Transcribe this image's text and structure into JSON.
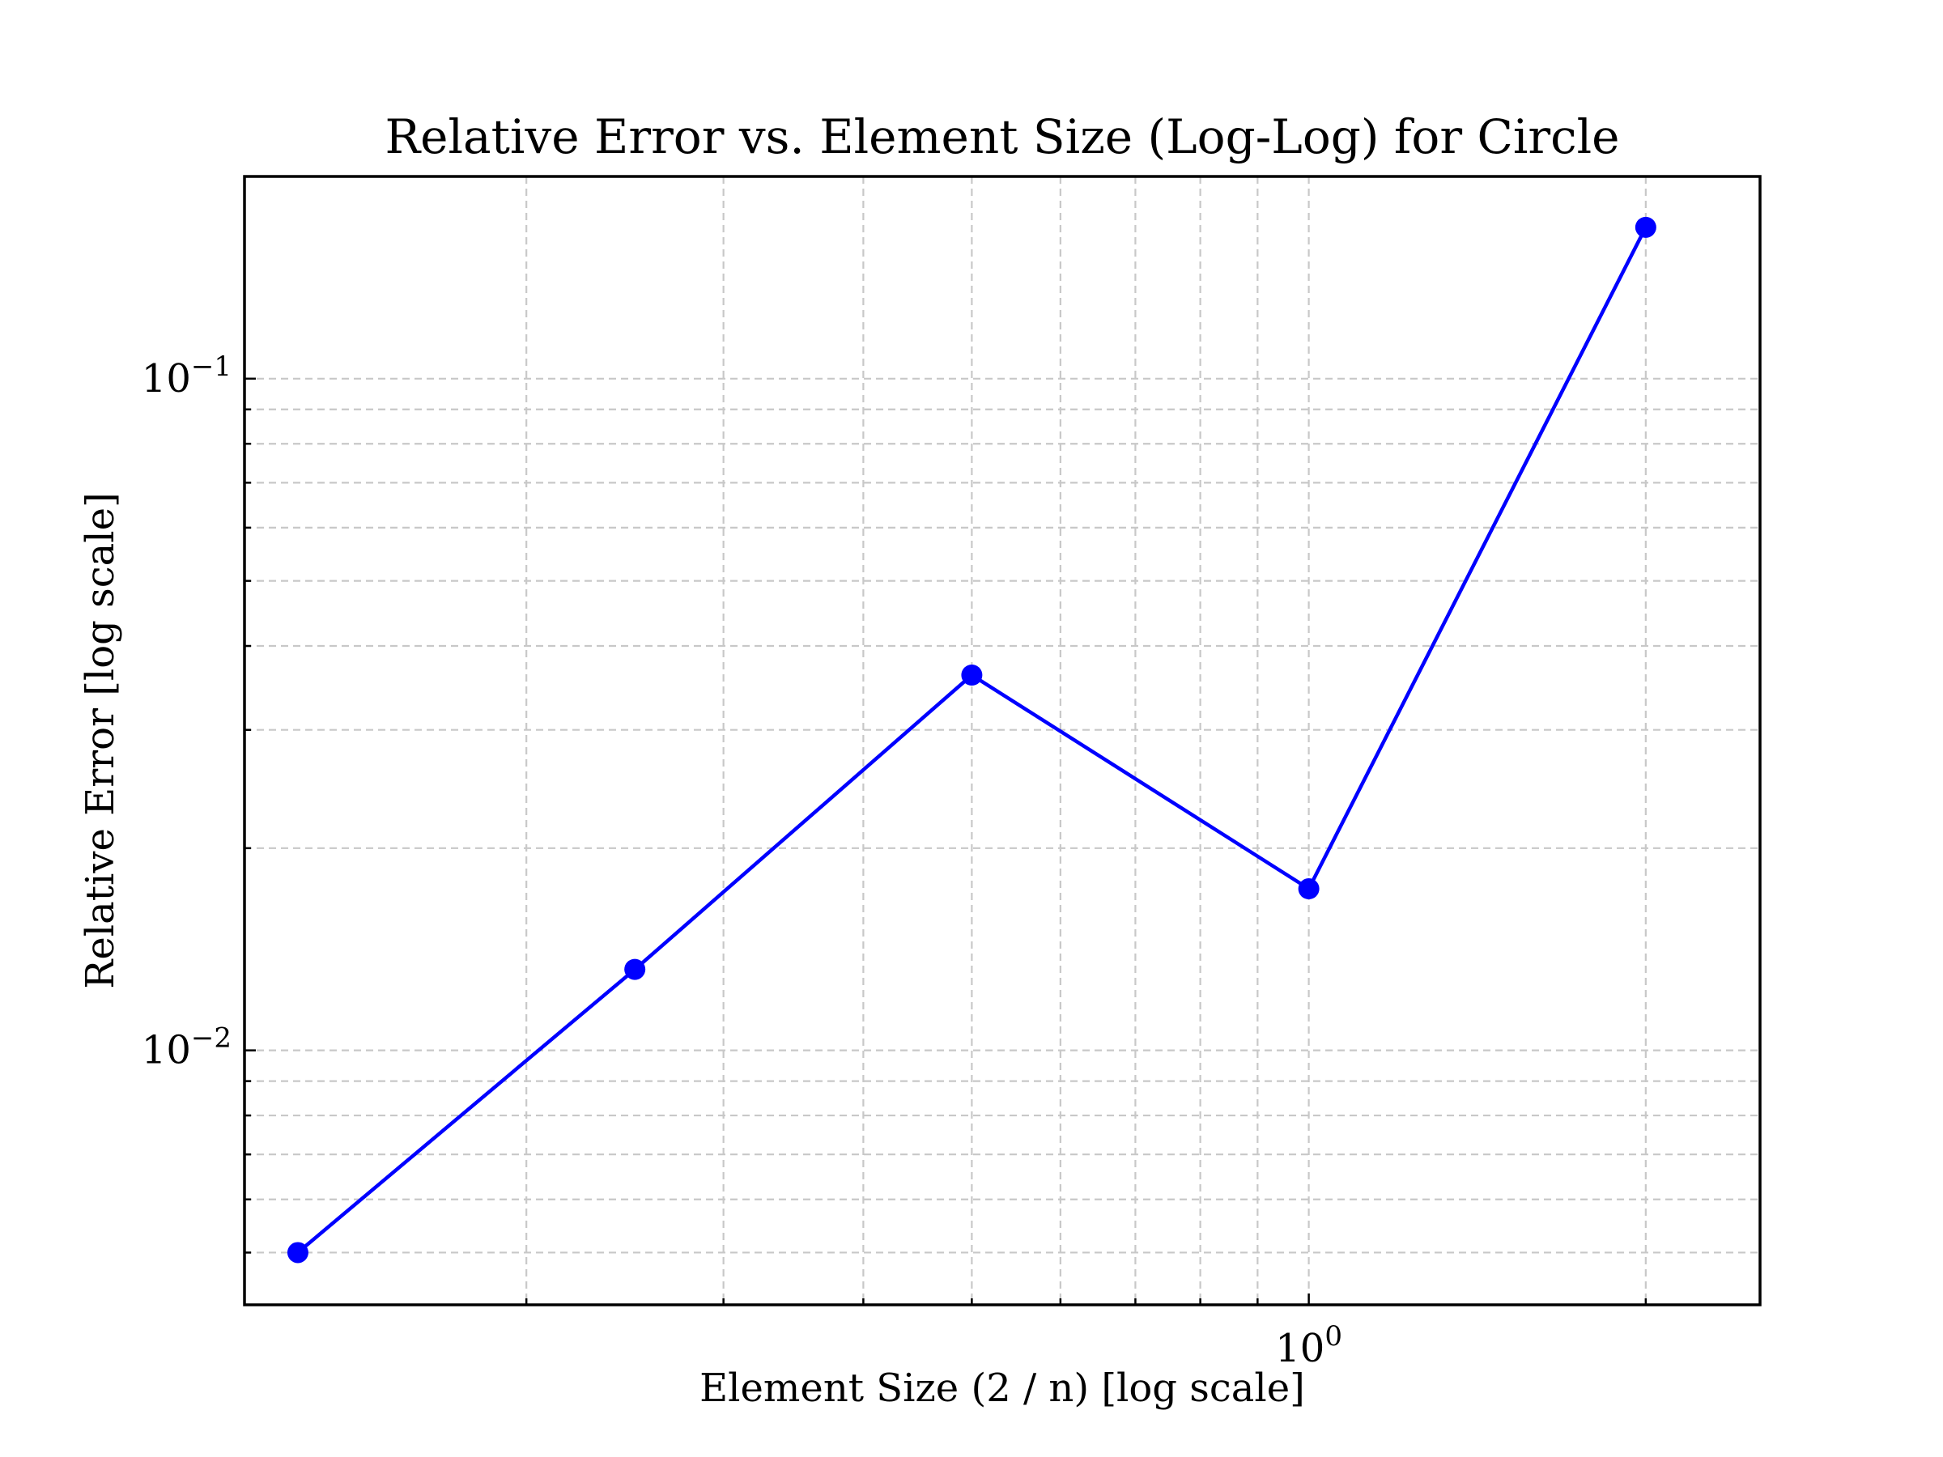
{
  "chart_data": {
    "type": "line",
    "title": "Relative Error vs. Element Size (Log-Log) for Circle",
    "xlabel": "Element Size (2 / n) [log scale]",
    "ylabel": "Relative Error [log scale]",
    "xscale": "log",
    "yscale": "log",
    "xlim": [
      0.112,
      2.53
    ],
    "ylim": [
      0.00418,
      0.2
    ],
    "grid": true,
    "grid_style": "dashed",
    "x_ticks": [
      {
        "value": 1,
        "base": "10",
        "exponent": "0"
      }
    ],
    "y_ticks": [
      {
        "value": 0.01,
        "base": "10",
        "exponent": "−2"
      },
      {
        "value": 0.1,
        "base": "10",
        "exponent": "−1"
      }
    ],
    "x_minor_ticks": [
      0.2,
      0.3,
      0.4,
      0.5,
      0.6,
      0.7,
      0.8,
      0.9,
      2
    ],
    "y_minor_ticks": [
      0.005,
      0.006,
      0.007,
      0.008,
      0.009,
      0.02,
      0.03,
      0.04,
      0.05,
      0.06,
      0.07,
      0.08,
      0.09
    ],
    "series": [
      {
        "x": [
          0.125,
          0.25,
          0.5,
          1.0,
          2.0
        ],
        "y": [
          0.005,
          0.0132,
          0.0362,
          0.0174,
          0.168
        ],
        "color": "#0000ff",
        "marker": "circle",
        "linestyle": "solid"
      }
    ]
  }
}
